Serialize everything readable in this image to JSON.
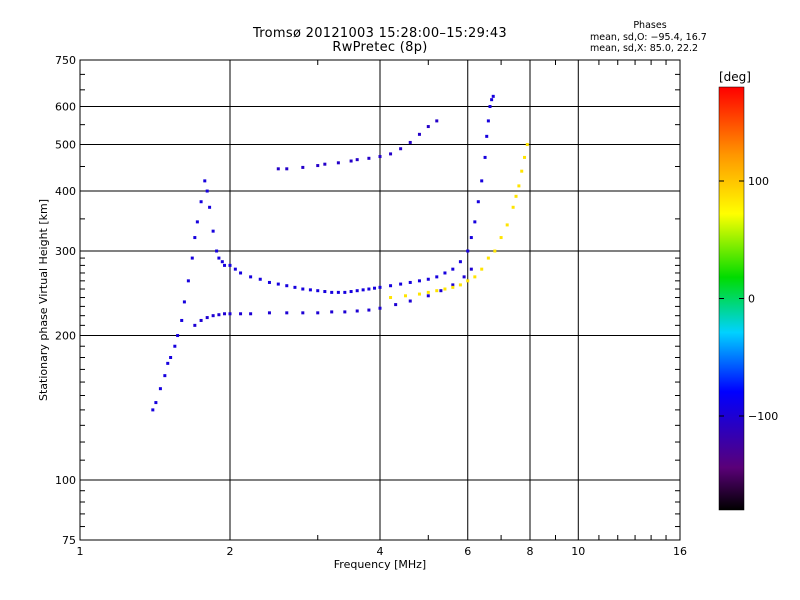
{
  "header": {
    "title_line1": "Tromsø 20121003 15:28:00–15:29:43",
    "title_line2": "RwPretec (8p)"
  },
  "phases_box": {
    "heading": "Phases",
    "line_o": "mean, sd,O: −95.4, 16.7",
    "line_x": "mean, sd,X:  85.0, 22.2"
  },
  "colorbar": {
    "unit": "[deg]",
    "min": -180,
    "max": 180,
    "ticks": [
      100,
      0,
      -100
    ],
    "tick_labels": [
      "100",
      "0",
      "−100"
    ],
    "colormap": "rainbow (black-purple-blue-cyan-green-yellow-orange-red)"
  },
  "chart_data": {
    "type": "scatter",
    "title": "Tromsø 20121003 15:28:00–15:29:43",
    "subtitle": "RwPretec (8p)",
    "xlabel": "Frequency [MHz]",
    "ylabel": "Stationary phase Virtual Height [km]",
    "x_scale": "log",
    "y_scale": "log",
    "xlim": [
      1,
      16
    ],
    "ylim": [
      75,
      750
    ],
    "x_major_ticks": [
      1,
      2,
      4,
      6,
      8,
      10,
      16
    ],
    "x_tick_labels": [
      "1",
      "2",
      "4",
      "6",
      "8",
      "10",
      "16"
    ],
    "x_minor_ticks": [
      3,
      5,
      7,
      9,
      11,
      12,
      13,
      14,
      15
    ],
    "y_major_ticks": [
      75,
      100,
      200,
      300,
      400,
      500,
      600,
      750
    ],
    "y_tick_labels": [
      "75",
      "100",
      "200",
      "300",
      "400",
      "500",
      "600",
      "750"
    ],
    "grid": true,
    "color_encoding": "phase [deg]",
    "series": [
      {
        "color_phase_deg": -95,
        "x": [
          1.4,
          1.42,
          1.45,
          1.48,
          1.5,
          1.52,
          1.55,
          1.57,
          1.6,
          1.62,
          1.65,
          1.68,
          1.7,
          1.72,
          1.75,
          1.78,
          1.8,
          1.82,
          1.85,
          1.88,
          1.9,
          1.93,
          1.95,
          2.0,
          2.05,
          2.1,
          2.2,
          2.3,
          2.4,
          2.5,
          2.6,
          2.7,
          2.8,
          2.9,
          3.0,
          3.1,
          3.2,
          3.3,
          3.4,
          3.5,
          3.6,
          3.7,
          3.8,
          3.9,
          4.0,
          4.2,
          4.4,
          4.6,
          4.8,
          5.0,
          5.2,
          5.4,
          5.6,
          5.8,
          6.0,
          6.1,
          6.2,
          6.3,
          6.4,
          6.5,
          6.55,
          6.6,
          6.65,
          6.7,
          6.75
        ],
        "y": [
          140,
          145,
          155,
          165,
          175,
          180,
          190,
          200,
          215,
          235,
          260,
          290,
          320,
          345,
          380,
          420,
          400,
          370,
          330,
          300,
          290,
          285,
          280,
          280,
          275,
          270,
          265,
          262,
          258,
          256,
          254,
          252,
          250,
          249,
          248,
          247,
          246,
          246,
          246,
          247,
          248,
          249,
          250,
          251,
          252,
          254,
          256,
          258,
          260,
          262,
          265,
          270,
          275,
          285,
          300,
          320,
          345,
          380,
          420,
          470,
          520,
          560,
          600,
          620,
          630
        ]
      },
      {
        "color_phase_deg": -100,
        "x": [
          1.7,
          1.75,
          1.8,
          1.85,
          1.9,
          1.95,
          2.0,
          2.1,
          2.2,
          2.4,
          2.6,
          2.8,
          3.0,
          3.2,
          3.4,
          3.6,
          3.8,
          4.0,
          4.3,
          4.6,
          5.0,
          5.3,
          5.6,
          5.9,
          6.1
        ],
        "y": [
          210,
          215,
          218,
          220,
          221,
          222,
          222,
          222,
          222,
          223,
          223,
          223,
          223,
          224,
          224,
          225,
          226,
          228,
          232,
          236,
          242,
          248,
          255,
          265,
          275
        ]
      },
      {
        "color_phase_deg": -105,
        "x": [
          2.5,
          2.6,
          2.8,
          3.0,
          3.1,
          3.3,
          3.5,
          3.6,
          3.8,
          4.0,
          4.2,
          4.4,
          4.6,
          4.8,
          5.0,
          5.2
        ],
        "y": [
          445,
          445,
          448,
          452,
          455,
          458,
          462,
          465,
          468,
          472,
          478,
          490,
          505,
          525,
          545,
          560
        ]
      },
      {
        "color_phase_deg": 85,
        "x": [
          4.2,
          4.5,
          4.8,
          5.0,
          5.2,
          5.4,
          5.6,
          5.8,
          6.0,
          6.2,
          6.4,
          6.6,
          6.8,
          7.0,
          7.2,
          7.4,
          7.5,
          7.6,
          7.7,
          7.8,
          7.9
        ],
        "y": [
          240,
          242,
          244,
          246,
          248,
          250,
          252,
          255,
          260,
          265,
          275,
          290,
          300,
          320,
          340,
          370,
          390,
          410,
          440,
          470,
          500
        ]
      }
    ]
  }
}
